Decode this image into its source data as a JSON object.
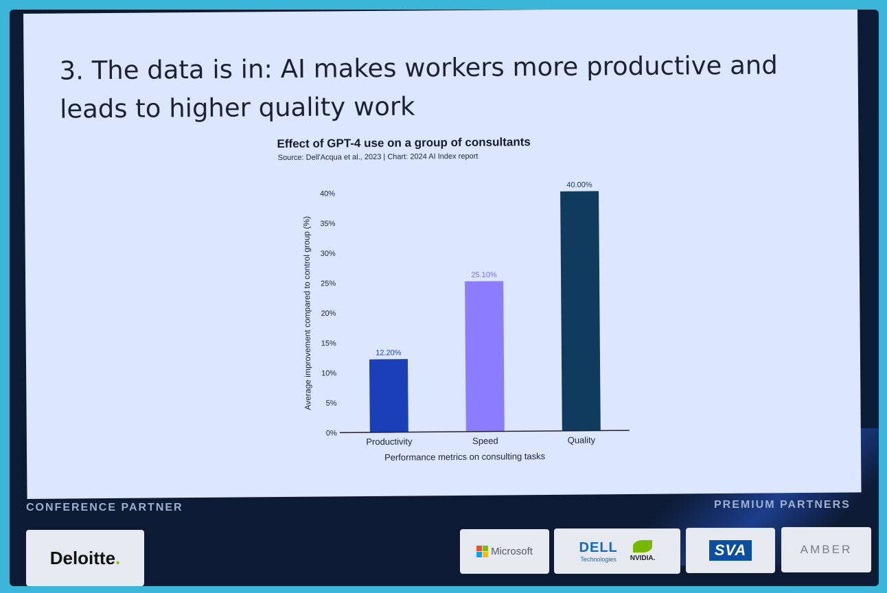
{
  "slide": {
    "title": "3. The data is in: AI makes workers more productive and leads to higher quality work"
  },
  "chart_data": {
    "type": "bar",
    "title": "Effect of GPT-4 use on a group of consultants",
    "subtitle": "Source: Dell'Acqua et al., 2023 | Chart: 2024 AI Index report",
    "xlabel": "Performance metrics on consulting tasks",
    "ylabel": "Average improvement compared to control group (%)",
    "categories": [
      "Productivity",
      "Speed",
      "Quality"
    ],
    "values": [
      12.2,
      25.1,
      40.0
    ],
    "value_labels": [
      "12.20%",
      "25.10%",
      "40.00%"
    ],
    "bar_colors": [
      "#1a3fb6",
      "#8c7cff",
      "#0f3b5c"
    ],
    "label_colors": [
      "#1a3fb6",
      "#7a6cf0",
      "#0f3b5c"
    ],
    "ylim": [
      0,
      40
    ],
    "yticks": [
      0,
      5,
      10,
      15,
      20,
      25,
      30,
      35,
      40
    ],
    "ytick_labels": [
      "0%",
      "5%",
      "10%",
      "15%",
      "20%",
      "25%",
      "30%",
      "35%",
      "40%"
    ],
    "grid": false,
    "legend": false
  },
  "footer": {
    "conference_label": "CONFERENCE PARTNER",
    "premium_label": "PREMIUM PARTNERS",
    "conference_partner": "Deloitte",
    "conference_partner_dot": ".",
    "premium_partners": {
      "microsoft": "Microsoft",
      "dell": "DELL",
      "dell_sub": "Technologies",
      "nvidia": "NVIDIA.",
      "sva": "SVA",
      "amber": "AMBER"
    },
    "icons": [
      "microsoft-logo-icon",
      "nvidia-eye-icon"
    ]
  }
}
